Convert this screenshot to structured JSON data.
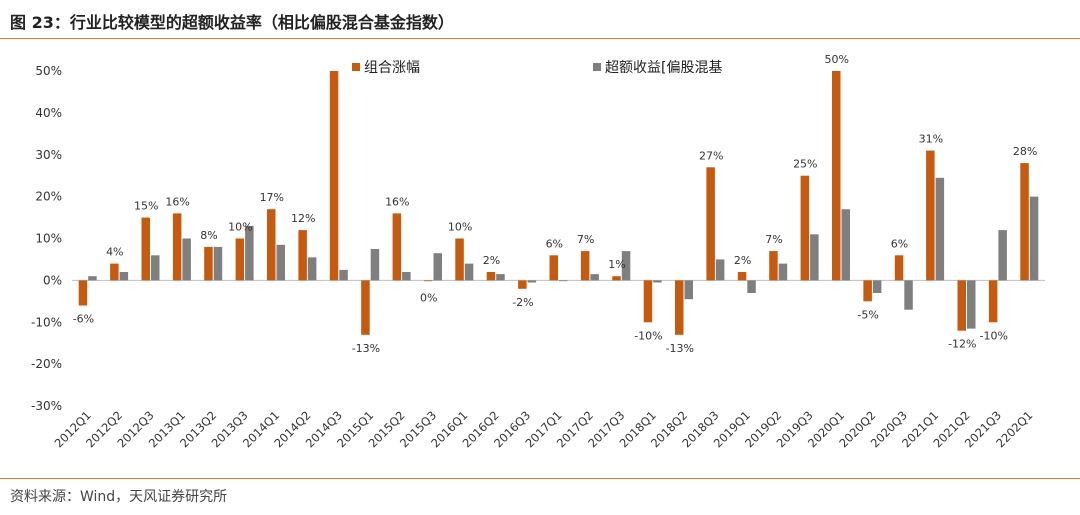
{
  "title": "图 23：行业比较模型的超额收益率（相比偏股混合基金指数）",
  "source": "资料来源：Wind，天风证券研究所",
  "colors": {
    "accent": "#e07a2e",
    "series1": "#c55a11",
    "series2": "#7f7f7f"
  },
  "chart_data": {
    "type": "bar",
    "categories": [
      "2012Q1",
      "2012Q2",
      "2012Q3",
      "2013Q1",
      "2013Q2",
      "2013Q3",
      "2014Q1",
      "2014Q2",
      "2014Q3",
      "2015Q1",
      "2015Q2",
      "2015Q3",
      "2016Q1",
      "2016Q2",
      "2016Q3",
      "2017Q1",
      "2017Q2",
      "2017Q3",
      "2018Q1",
      "2018Q2",
      "2018Q3",
      "2019Q1",
      "2019Q2",
      "2019Q3",
      "2020Q1",
      "2020Q2",
      "2020Q3",
      "2021Q1",
      "2021Q2",
      "2021Q3",
      "2202Q1"
    ],
    "series": [
      {
        "name": "组合涨幅",
        "values": [
          -6,
          4,
          15,
          16,
          8,
          10,
          17,
          12,
          50,
          -13,
          16,
          0,
          10,
          2,
          -2,
          6,
          7,
          1,
          -10,
          -13,
          27,
          2,
          7,
          25,
          50,
          -5,
          6,
          31,
          -12,
          -10,
          28
        ]
      },
      {
        "name": "超额收益[偏股混基",
        "values": [
          1,
          2,
          6,
          10,
          8,
          13,
          8.5,
          5.5,
          2.5,
          7.5,
          2,
          6.5,
          4,
          1.5,
          -0.5,
          0,
          1.5,
          7,
          -0.5,
          -4.5,
          5,
          -3,
          4,
          11,
          17,
          -3,
          -7,
          24.5,
          -11.5,
          12,
          20
        ]
      }
    ],
    "data_labels": [
      "-6%",
      "4%",
      "15%",
      "16%",
      "8%",
      "10%",
      "17%",
      "12%",
      "",
      "-13%",
      "16%",
      "0%",
      "10%",
      "2%",
      "-2%",
      "6%",
      "7%",
      "1%",
      "-10%",
      "-13%",
      "27%",
      "2%",
      "7%",
      "25%",
      "50%",
      "-5%",
      "6%",
      "31%",
      "-12%",
      "-10%",
      "28%"
    ],
    "y_ticks": [
      "50%",
      "40%",
      "30%",
      "20%",
      "10%",
      "0%",
      "-10%",
      "-20%",
      "-30%"
    ],
    "ylim": [
      -30,
      50
    ],
    "grid": false,
    "legend": "top"
  }
}
